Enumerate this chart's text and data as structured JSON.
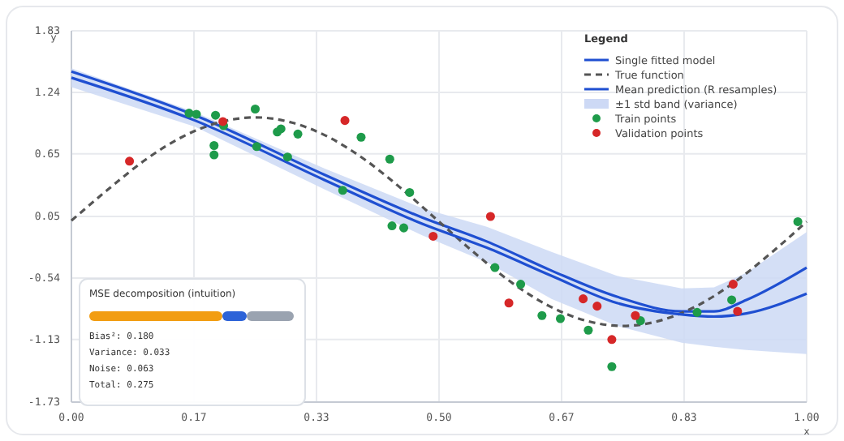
{
  "chart_data": {
    "type": "line",
    "xlabel": "x",
    "ylabel": "y",
    "legend_title": "Legend",
    "legend": "top right",
    "grid": true,
    "xlim": [
      0,
      1
    ],
    "ylim": [
      -1.73,
      1.83
    ],
    "xticks": [
      {
        "value": 0,
        "label": "0.00"
      },
      {
        "value": 0.1667,
        "label": "0.17"
      },
      {
        "value": 0.3333,
        "label": "0.33"
      },
      {
        "value": 0.5,
        "label": "0.50"
      },
      {
        "value": 0.6667,
        "label": "0.67"
      },
      {
        "value": 0.8333,
        "label": "0.83"
      },
      {
        "value": 1,
        "label": "1.00"
      }
    ],
    "yticks": [
      {
        "value": -1.73,
        "label": "-1.73"
      },
      {
        "value": -1.13,
        "label": "-1.13"
      },
      {
        "value": -0.54,
        "label": "-0.54"
      },
      {
        "value": 0.05,
        "label": "0.05"
      },
      {
        "value": 0.65,
        "label": "0.65"
      },
      {
        "value": 1.24,
        "label": "1.24"
      },
      {
        "value": 1.83,
        "label": "1.83"
      }
    ],
    "series": [
      {
        "name": "Single fitted model",
        "color": "#1f4fd1",
        "line_style": "solid",
        "x": [
          0,
          0.168,
          0.344,
          0.477,
          0.565,
          0.653,
          0.742,
          0.83,
          0.874,
          0.918,
          1.0
        ],
        "values": [
          1.44,
          1.02,
          0.45,
          0.04,
          -0.19,
          -0.47,
          -0.72,
          -0.86,
          -0.86,
          -0.75,
          -0.44
        ]
      },
      {
        "name": "True function",
        "color": "#555555",
        "line_style": "dashed",
        "x": [
          0,
          0.05,
          0.1,
          0.15,
          0.2,
          0.25,
          0.3,
          0.35,
          0.4,
          0.45,
          0.5,
          0.55,
          0.6,
          0.65,
          0.7,
          0.75,
          0.8,
          0.85,
          0.9,
          0.95,
          1.0
        ],
        "values": [
          0.01,
          0.31,
          0.59,
          0.81,
          0.95,
          1.0,
          0.95,
          0.81,
          0.59,
          0.31,
          0.0,
          -0.31,
          -0.59,
          -0.81,
          -0.95,
          -1.0,
          -0.95,
          -0.81,
          -0.59,
          -0.31,
          0.0
        ]
      },
      {
        "name": "Mean prediction (R resamples)",
        "color": "#1f4fd1",
        "line_style": "solid",
        "x": [
          0,
          0.168,
          0.344,
          0.477,
          0.565,
          0.653,
          0.742,
          0.83,
          0.874,
          0.918,
          1.0
        ],
        "values": [
          1.38,
          0.97,
          0.4,
          -0.02,
          -0.25,
          -0.52,
          -0.78,
          -0.89,
          -0.91,
          -0.88,
          -0.69
        ],
        "lower": [
          1.29,
          0.91,
          0.31,
          -0.13,
          -0.39,
          -0.74,
          -1.0,
          -1.16,
          -1.2,
          -1.23,
          -1.27
        ],
        "upper": [
          1.47,
          1.05,
          0.51,
          0.13,
          -0.05,
          -0.29,
          -0.52,
          -0.64,
          -0.63,
          -0.49,
          -0.1
        ]
      },
      {
        "name": "Train points",
        "type": "scatter",
        "marker": "circle",
        "color": "#1e9b4a",
        "x": [
          0.16,
          0.17,
          0.196,
          0.207,
          0.194,
          0.194,
          0.25,
          0.252,
          0.28,
          0.285,
          0.308,
          0.294,
          0.394,
          0.369,
          0.433,
          0.46,
          0.436,
          0.452,
          0.576,
          0.611,
          0.64,
          0.665,
          0.703,
          0.735,
          0.774,
          0.851,
          0.898,
          0.988
        ],
        "values": [
          1.04,
          1.03,
          1.02,
          0.92,
          0.73,
          0.64,
          1.08,
          0.72,
          0.86,
          0.89,
          0.84,
          0.62,
          0.81,
          0.3,
          0.6,
          0.28,
          -0.04,
          -0.06,
          -0.44,
          -0.6,
          -0.9,
          -0.93,
          -1.04,
          -1.39,
          -0.95,
          -0.87,
          -0.75,
          0.0
        ]
      },
      {
        "name": "Validation points",
        "type": "scatter",
        "marker": "circle",
        "color": "#d62728",
        "x": [
          0.079,
          0.206,
          0.372,
          0.57,
          0.492,
          0.595,
          0.696,
          0.715,
          0.735,
          0.767,
          0.9,
          0.906
        ],
        "values": [
          0.58,
          0.96,
          0.97,
          0.05,
          -0.14,
          -0.78,
          -0.74,
          -0.81,
          -1.13,
          -0.9,
          -0.6,
          -0.86
        ]
      }
    ],
    "annotations": [
      "MSE decomposition (intuition)",
      "Bias²: 0.180",
      "Variance: 0.033",
      "Noise: 0.063",
      "Total: 0.275",
      "±1 std band (variance)"
    ]
  }
}
